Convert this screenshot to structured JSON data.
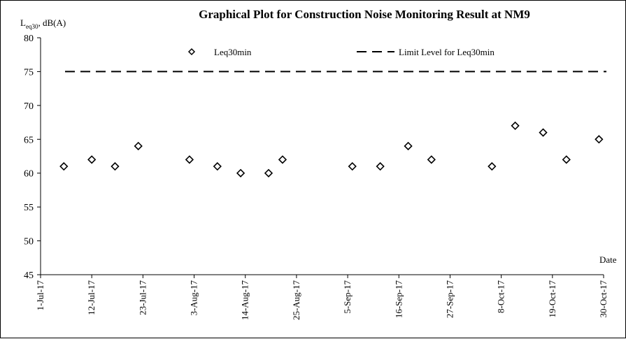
{
  "chart_data": {
    "type": "scatter",
    "title": "Graphical Plot for Construction Noise Monitoring Result at NM9",
    "ylabel": "L",
    "ylabel_sub": "eq30",
    "ylabel_unit": ", dB(A)",
    "xlabel": "Date",
    "ylim": [
      45,
      80
    ],
    "yticks": [
      45,
      50,
      55,
      60,
      65,
      70,
      75,
      80
    ],
    "x_ticks": [
      "1-Jul-17",
      "12-Jul-17",
      "23-Jul-17",
      "3-Aug-17",
      "14-Aug-17",
      "25-Aug-17",
      "5-Sep-17",
      "16-Sep-17",
      "27-Sep-17",
      "8-Oct-17",
      "19-Oct-17",
      "30-Oct-17"
    ],
    "xlim": [
      "2017-07-01",
      "2017-10-30"
    ],
    "series": [
      {
        "name": "Leq30min",
        "marker": "diamond",
        "points": [
          {
            "date": "2017-07-06",
            "value": 61
          },
          {
            "date": "2017-07-12",
            "value": 62
          },
          {
            "date": "2017-07-17",
            "value": 61
          },
          {
            "date": "2017-07-22",
            "value": 64
          },
          {
            "date": "2017-08-02",
            "value": 62
          },
          {
            "date": "2017-08-08",
            "value": 61
          },
          {
            "date": "2017-08-13",
            "value": 60
          },
          {
            "date": "2017-08-19",
            "value": 60
          },
          {
            "date": "2017-08-22",
            "value": 62
          },
          {
            "date": "2017-09-06",
            "value": 61
          },
          {
            "date": "2017-09-12",
            "value": 61
          },
          {
            "date": "2017-09-18",
            "value": 64
          },
          {
            "date": "2017-09-23",
            "value": 62
          },
          {
            "date": "2017-10-06",
            "value": 61
          },
          {
            "date": "2017-10-11",
            "value": 67
          },
          {
            "date": "2017-10-17",
            "value": 66
          },
          {
            "date": "2017-10-22",
            "value": 62
          },
          {
            "date": "2017-10-29",
            "value": 65
          }
        ]
      },
      {
        "name": "Limit Level for Leq30min",
        "style": "dashed-line",
        "value": 75
      }
    ],
    "legend_placement": "top",
    "grid": false
  }
}
